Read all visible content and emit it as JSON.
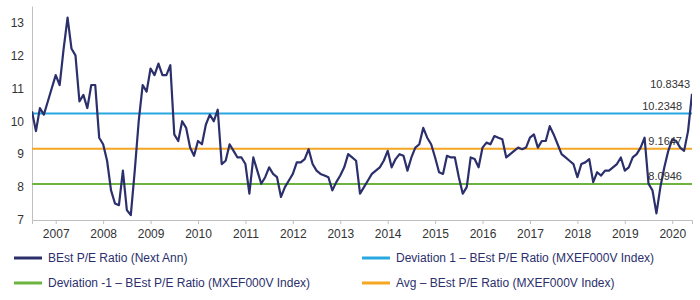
{
  "chart_data": {
    "type": "line",
    "categories": [
      null,
      null,
      null,
      null,
      null,
      null,
      "2007",
      null,
      null,
      null,
      null,
      null,
      null,
      null,
      null,
      null,
      null,
      null,
      "2008",
      null,
      null,
      null,
      null,
      null,
      null,
      null,
      null,
      null,
      null,
      null,
      "2009",
      null,
      null,
      null,
      null,
      null,
      null,
      null,
      null,
      null,
      null,
      null,
      "2010",
      null,
      null,
      null,
      null,
      null,
      null,
      null,
      null,
      null,
      null,
      null,
      "2011",
      null,
      null,
      null,
      null,
      null,
      null,
      null,
      null,
      null,
      null,
      null,
      "2012",
      null,
      null,
      null,
      null,
      null,
      null,
      null,
      null,
      null,
      null,
      null,
      "2013",
      null,
      null,
      null,
      null,
      null,
      null,
      null,
      null,
      null,
      null,
      null,
      "2014",
      null,
      null,
      null,
      null,
      null,
      null,
      null,
      null,
      null,
      null,
      null,
      "2015",
      null,
      null,
      null,
      null,
      null,
      null,
      null,
      null,
      null,
      null,
      null,
      "2016",
      null,
      null,
      null,
      null,
      null,
      null,
      null,
      null,
      null,
      null,
      null,
      "2017",
      null,
      null,
      null,
      null,
      null,
      null,
      null,
      null,
      null,
      null,
      null,
      "2018",
      null,
      null,
      null,
      null,
      null,
      null,
      null,
      null,
      null,
      null,
      null,
      "2019",
      null,
      null,
      null,
      null,
      null,
      null,
      null,
      null,
      null,
      null,
      null,
      "2020",
      null,
      null,
      null,
      null,
      null
    ],
    "series": [
      {
        "name": "BEst P/E Ratio (Next Ann)",
        "color": "#2b2f6b",
        "values": [
          10.3,
          9.7,
          10.4,
          10.2,
          10.6,
          11.0,
          11.4,
          11.1,
          12.2,
          13.15,
          12.2,
          12.0,
          10.6,
          10.8,
          10.4,
          11.1,
          11.1,
          9.5,
          9.3,
          8.8,
          7.9,
          7.5,
          7.45,
          8.5,
          7.3,
          7.15,
          8.5,
          10.0,
          11.1,
          10.9,
          11.6,
          11.4,
          11.75,
          11.4,
          11.4,
          11.7,
          9.6,
          9.4,
          10.0,
          9.8,
          9.2,
          8.95,
          9.4,
          9.3,
          9.9,
          10.2,
          10.0,
          10.35,
          8.7,
          8.8,
          9.3,
          9.1,
          8.9,
          8.9,
          8.7,
          7.8,
          8.9,
          8.5,
          8.1,
          8.3,
          8.6,
          8.4,
          8.3,
          7.7,
          8.0,
          8.2,
          8.4,
          8.75,
          8.75,
          8.85,
          9.15,
          8.7,
          8.5,
          8.4,
          8.35,
          8.3,
          7.9,
          8.15,
          8.35,
          8.6,
          9.0,
          8.9,
          8.8,
          7.8,
          8.0,
          8.2,
          8.4,
          8.5,
          8.6,
          8.8,
          9.1,
          8.6,
          8.85,
          9.0,
          8.95,
          8.5,
          8.9,
          9.2,
          9.3,
          9.8,
          9.5,
          9.3,
          8.9,
          8.45,
          8.4,
          8.95,
          8.9,
          8.9,
          8.3,
          7.8,
          8.0,
          8.9,
          8.85,
          8.6,
          9.2,
          9.35,
          9.3,
          9.55,
          9.5,
          9.45,
          8.9,
          9.0,
          9.1,
          9.2,
          9.15,
          9.2,
          9.5,
          9.6,
          9.2,
          9.4,
          9.4,
          9.85,
          9.6,
          9.3,
          9.0,
          8.9,
          8.8,
          8.7,
          8.3,
          8.7,
          8.75,
          8.85,
          8.15,
          8.45,
          8.35,
          8.5,
          8.5,
          8.6,
          8.7,
          8.9,
          8.5,
          8.6,
          8.9,
          9.0,
          9.2,
          9.5,
          8.1,
          7.9,
          7.2,
          8.0,
          8.6,
          9.1,
          9.45,
          9.4,
          9.2,
          9.1,
          9.7,
          10.8343
        ]
      }
    ],
    "reference_lines": [
      {
        "name": "Deviation 1 – BEst P/E Ratio (MXEF000V Index)",
        "color": "#29a8e0",
        "value": 10.2348
      },
      {
        "name": "Deviation -1 – BEst P/E Ratio (MXEF000V Index)",
        "color": "#6db33f",
        "value": 8.0946
      },
      {
        "name": "Avg – BEst P/E Ratio (MXEF000V Index)",
        "color": "#f5a623",
        "value": 9.1647
      }
    ],
    "ylim": [
      7,
      13.5
    ],
    "yticks": [
      7,
      8,
      9,
      10,
      11,
      12,
      13
    ],
    "grid": false,
    "legend": "bottom"
  }
}
